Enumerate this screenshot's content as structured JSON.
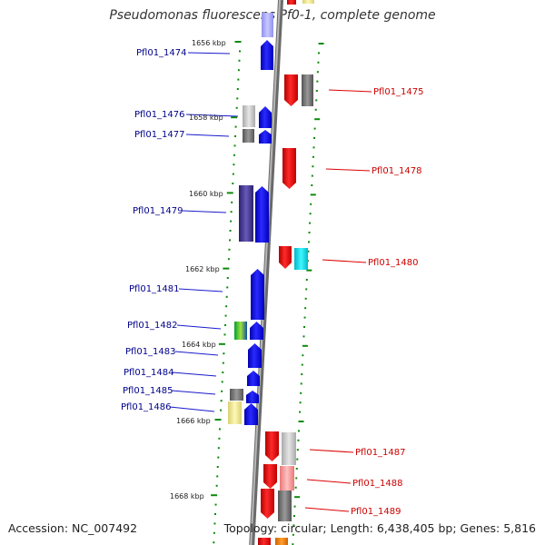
{
  "title": "Pseudomonas fluorescens Pf0-1, complete genome",
  "footer": {
    "accession": "Accession: NC_007492",
    "topology": "Topology: circular; Length: 6,438,405 bp; Genes: 5,816"
  },
  "colors": {
    "forward_gene": "#0000ee",
    "reverse_gene": "#ee0000",
    "forward_label": "#00008b",
    "reverse_label": "#cc0000",
    "axis": "#8a8a8a",
    "tick": "#0a8a0a"
  },
  "position_labels": [
    "1656 kbp",
    "1658 kbp",
    "1660 kbp",
    "1662 kbp",
    "1664 kbp",
    "1666 kbp",
    "1668 kbp"
  ],
  "forward_genes": [
    "Pfl01_1474",
    "Pfl01_1476",
    "Pfl01_1477",
    "Pfl01_1479",
    "Pfl01_1481",
    "Pfl01_1482",
    "Pfl01_1483",
    "Pfl01_1484",
    "Pfl01_1485",
    "Pfl01_1486"
  ],
  "reverse_genes": [
    "Pfl01_1475",
    "Pfl01_1478",
    "Pfl01_1480",
    "Pfl01_1487",
    "Pfl01_1488",
    "Pfl01_1489"
  ]
}
